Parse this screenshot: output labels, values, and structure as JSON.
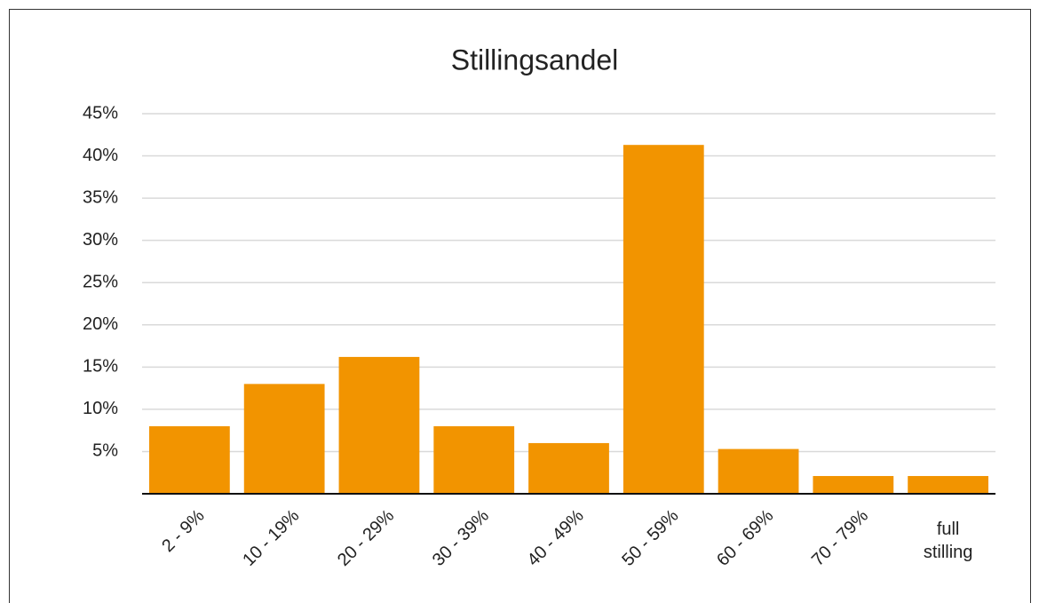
{
  "chart_data": {
    "type": "bar",
    "title": "Stillingsandel",
    "categories": [
      "2 - 9%",
      "10 - 19%",
      "20 - 29%",
      "30 - 39%",
      "40 - 49%",
      "50 - 59%",
      "60 - 69%",
      "70 - 79%",
      "full stilling"
    ],
    "values": [
      8.0,
      13.0,
      16.2,
      8.0,
      6.0,
      41.3,
      5.3,
      2.1,
      2.1
    ],
    "color": "#f29400",
    "ylim": [
      0,
      45
    ],
    "yticks": [
      {
        "value": 5,
        "label": "5%"
      },
      {
        "value": 10,
        "label": "10%"
      },
      {
        "value": 15,
        "label": "15%"
      },
      {
        "value": 20,
        "label": "20%"
      },
      {
        "value": 25,
        "label": "25%"
      },
      {
        "value": 30,
        "label": "30%"
      },
      {
        "value": 35,
        "label": "35%"
      },
      {
        "value": 40,
        "label": "40%"
      },
      {
        "value": 45,
        "label": "45%"
      }
    ],
    "grid": true
  }
}
